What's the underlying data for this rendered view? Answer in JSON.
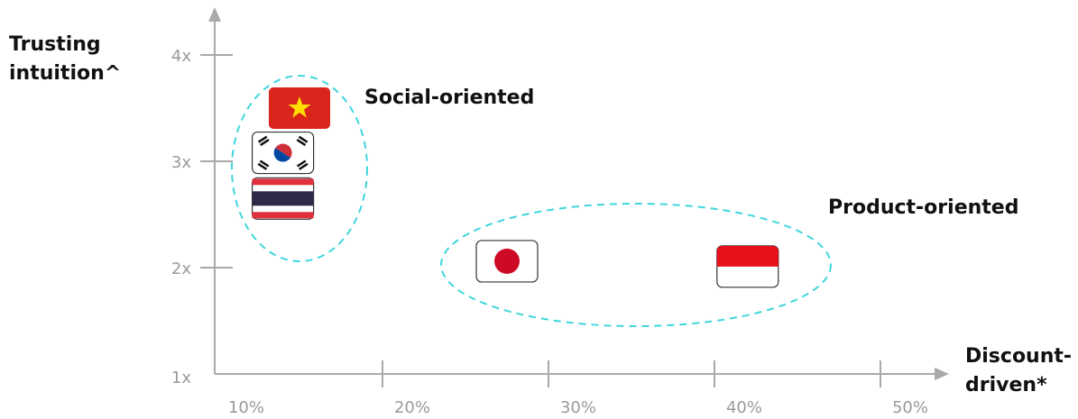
{
  "chart_data": {
    "type": "scatter",
    "title": "",
    "xlabel_lines": [
      "Discount-",
      "driven*"
    ],
    "ylabel_lines": [
      "Trusting",
      "intuition^"
    ],
    "x_ticks": [
      "10%",
      "20%",
      "30%",
      "40%",
      "50%"
    ],
    "y_ticks": [
      "1x",
      "2x",
      "3x",
      "4x"
    ],
    "xlim": [
      0.1,
      0.56
    ],
    "ylim": [
      1,
      4.4
    ],
    "grid": false,
    "points": [
      {
        "country": "Vietnam",
        "flag": "vn-flag",
        "x": 0.15,
        "y": 3.5
      },
      {
        "country": "South Korea",
        "flag": "kr-flag",
        "x": 0.14,
        "y": 3.08
      },
      {
        "country": "Thailand",
        "flag": "th-flag",
        "x": 0.14,
        "y": 2.65
      },
      {
        "country": "Japan",
        "flag": "jp-flag",
        "x": 0.275,
        "y": 2.06
      },
      {
        "country": "Indonesia",
        "flag": "id-flag",
        "x": 0.42,
        "y": 2.01
      }
    ],
    "clusters": [
      {
        "label": "Social-oriented",
        "members": [
          "Vietnam",
          "South Korea",
          "Thailand"
        ]
      },
      {
        "label": "Product-oriented",
        "members": [
          "Japan",
          "Indonesia"
        ]
      }
    ],
    "colors": {
      "axis": "#a9a9a9",
      "tick_text": "#9a9a9a",
      "cluster_outline": "#3fd6dc",
      "label_text": "#111111"
    }
  }
}
